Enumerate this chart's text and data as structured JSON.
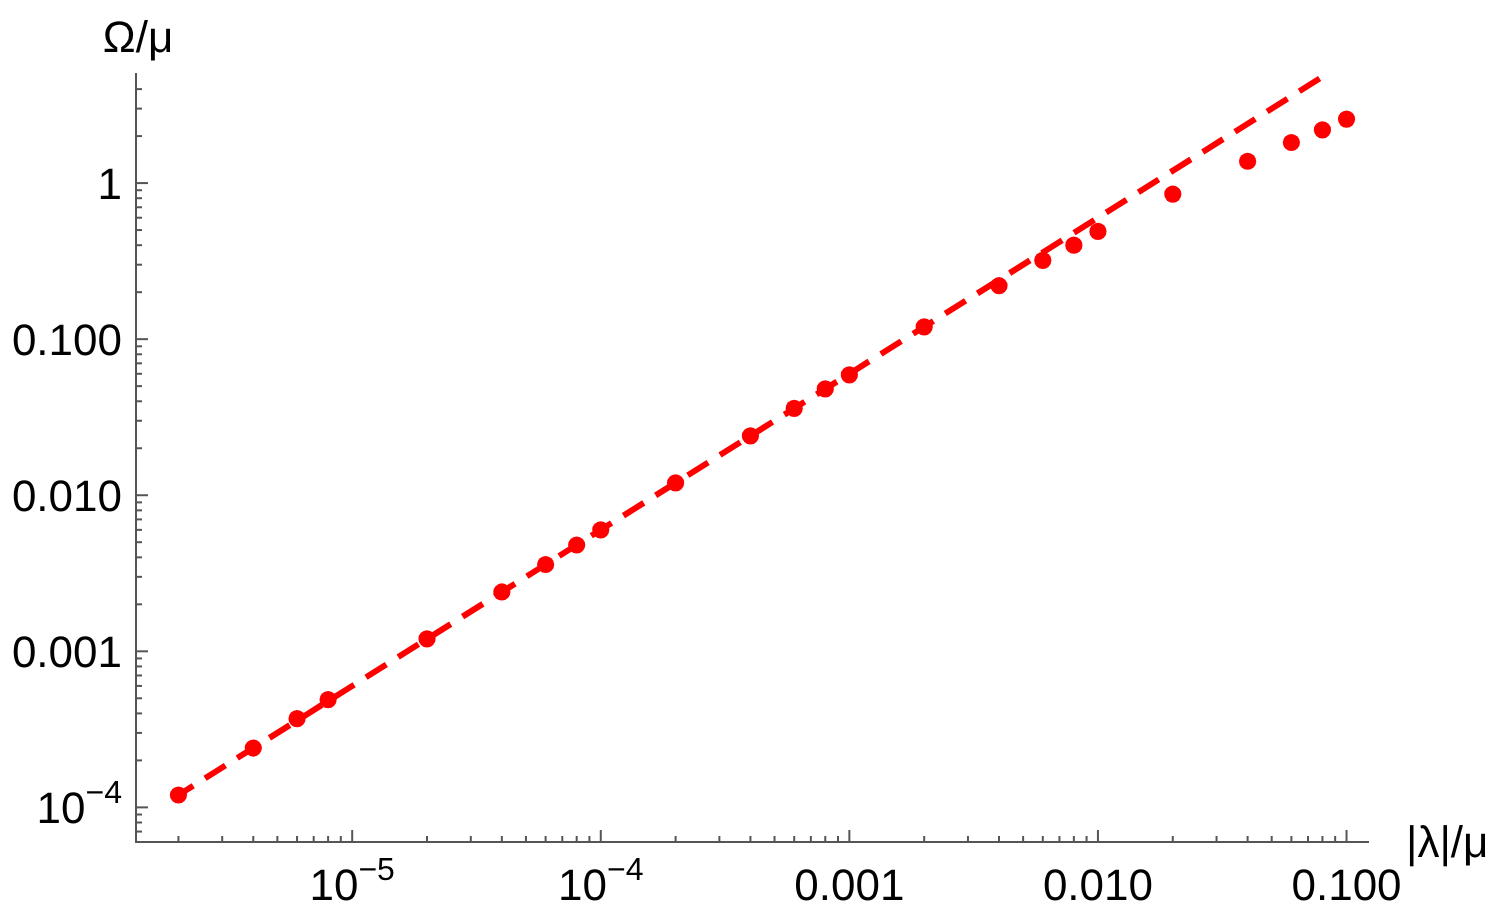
{
  "chart_data": {
    "type": "scatter",
    "xlabel": "|λ|/μ",
    "ylabel": "Ω/μ",
    "log": "xy",
    "xlim": [
      1.35e-06,
      0.122
    ],
    "ylim": [
      6e-05,
      5
    ],
    "xticks": [
      {
        "value": 2e-06,
        "label": null
      },
      {
        "value": 3e-06,
        "label": null
      },
      {
        "value": 4e-06,
        "label": null
      },
      {
        "value": 5e-06,
        "label": null
      },
      {
        "value": 6e-06,
        "label": null
      },
      {
        "value": 7e-06,
        "label": null
      },
      {
        "value": 8e-06,
        "label": null
      },
      {
        "value": 9e-06,
        "label": null
      },
      {
        "value": 1e-05,
        "label": "10$^{−5}$"
      },
      {
        "value": 2e-05,
        "label": null
      },
      {
        "value": 3e-05,
        "label": null
      },
      {
        "value": 4e-05,
        "label": null
      },
      {
        "value": 5e-05,
        "label": null
      },
      {
        "value": 6e-05,
        "label": null
      },
      {
        "value": 7e-05,
        "label": null
      },
      {
        "value": 8e-05,
        "label": null
      },
      {
        "value": 9e-05,
        "label": null
      },
      {
        "value": 0.0001,
        "label": "10$^{−4}$"
      },
      {
        "value": 0.0002,
        "label": null
      },
      {
        "value": 0.0003,
        "label": null
      },
      {
        "value": 0.0004,
        "label": null
      },
      {
        "value": 0.0005,
        "label": null
      },
      {
        "value": 0.0006,
        "label": null
      },
      {
        "value": 0.0007,
        "label": null
      },
      {
        "value": 0.0008,
        "label": null
      },
      {
        "value": 0.0009,
        "label": null
      },
      0.001,
      {
        "value": 0.002,
        "label": null
      },
      {
        "value": 0.003,
        "label": null
      },
      {
        "value": 0.004,
        "label": null
      },
      {
        "value": 0.005,
        "label": null
      },
      {
        "value": 0.006,
        "label": null
      },
      {
        "value": 0.007,
        "label": null
      },
      {
        "value": 0.008,
        "label": null
      },
      {
        "value": 0.009,
        "label": null
      },
      {
        "value": 0.01,
        "label": "0.010"
      },
      {
        "value": 0.02,
        "label": null
      },
      {
        "value": 0.03,
        "label": null
      },
      {
        "value": 0.04,
        "label": null
      },
      {
        "value": 0.05,
        "label": null
      },
      {
        "value": 0.06,
        "label": null
      },
      {
        "value": 0.07,
        "label": null
      },
      {
        "value": 0.08,
        "label": null
      },
      {
        "value": 0.09,
        "label": null
      },
      {
        "value": 0.1,
        "label": "0.100"
      }
    ],
    "yticks": [
      {
        "value": 7e-05,
        "label": null
      },
      {
        "value": 8e-05,
        "label": null
      },
      {
        "value": 9e-05,
        "label": null
      },
      {
        "value": 0.0001,
        "label": "10$^{−4}$"
      },
      {
        "value": 0.0002,
        "label": null
      },
      {
        "value": 0.0003,
        "label": null
      },
      {
        "value": 0.0004,
        "label": null
      },
      {
        "value": 0.0005,
        "label": null
      },
      {
        "value": 0.0006,
        "label": null
      },
      {
        "value": 0.0007,
        "label": null
      },
      {
        "value": 0.0008,
        "label": null
      },
      {
        "value": 0.0009,
        "label": null
      },
      0.001,
      {
        "value": 0.002,
        "label": null
      },
      {
        "value": 0.003,
        "label": null
      },
      {
        "value": 0.004,
        "label": null
      },
      {
        "value": 0.005,
        "label": null
      },
      {
        "value": 0.006,
        "label": null
      },
      {
        "value": 0.007,
        "label": null
      },
      {
        "value": 0.008,
        "label": null
      },
      {
        "value": 0.009,
        "label": null
      },
      {
        "value": 0.01,
        "label": "0.010"
      },
      {
        "value": 0.02,
        "label": null
      },
      {
        "value": 0.03,
        "label": null
      },
      {
        "value": 0.04,
        "label": null
      },
      {
        "value": 0.05,
        "label": null
      },
      {
        "value": 0.06,
        "label": null
      },
      {
        "value": 0.07,
        "label": null
      },
      {
        "value": 0.08,
        "label": null
      },
      {
        "value": 0.09,
        "label": null
      },
      {
        "value": 0.1,
        "label": "0.100"
      },
      {
        "value": 0.2,
        "label": null
      },
      {
        "value": 0.3,
        "label": null
      },
      {
        "value": 0.4,
        "label": null
      },
      {
        "value": 0.5,
        "label": null
      },
      {
        "value": 0.6,
        "label": null
      },
      {
        "value": 0.7,
        "label": null
      },
      {
        "value": 0.8,
        "label": null
      },
      {
        "value": 0.9,
        "label": null
      },
      1,
      {
        "value": 2,
        "label": null
      },
      {
        "value": 3,
        "label": null
      },
      {
        "value": 4,
        "label": null
      }
    ],
    "series": [
      {
        "color": "#ff0000",
        "marker": "circle",
        "x": [
          2e-06,
          4e-06,
          6e-06,
          8e-06,
          2e-05,
          4e-05,
          6e-05,
          8e-05,
          0.0001,
          0.0002,
          0.0004,
          0.0006,
          0.0008,
          0.001,
          0.002,
          0.004,
          0.006,
          0.008,
          0.01,
          0.02,
          0.04,
          0.06,
          0.08,
          0.1
        ],
        "values": [
          0.00012,
          0.00024,
          0.00037,
          0.00049,
          0.0012,
          0.0024,
          0.0036,
          0.0048,
          0.006,
          0.012,
          0.024,
          0.036,
          0.048,
          0.059,
          0.12,
          0.22,
          0.32,
          0.4,
          0.49,
          0.85,
          1.38,
          1.82,
          2.19,
          2.57
        ]
      },
      {
        "type": "line",
        "color": "#ff0000",
        "marker": "none",
        "line_style": "dashed",
        "x": [
          1.9e-06,
          0.082
        ],
        "values": [
          0.000114,
          4.92
        ]
      }
    ]
  }
}
